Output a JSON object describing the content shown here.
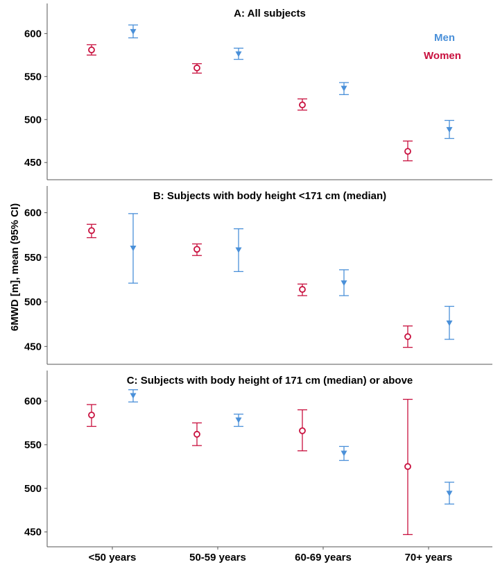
{
  "chart_data": {
    "type": "errorbar",
    "ylabel": "6MWD [m], mean (95% CI)",
    "categories": [
      "<50 years",
      "50-59 years",
      "60-69 years",
      "70+ years"
    ],
    "yticks": [
      450,
      500,
      550,
      600
    ],
    "legend": {
      "placement": "top-right",
      "entries": [
        {
          "name": "Men",
          "color": "#4a90d9"
        },
        {
          "name": "Women",
          "color": "#c8103e"
        }
      ]
    },
    "colors": {
      "women": "#c8103e",
      "men": "#4a90d9"
    },
    "markers": {
      "women": "open-circle",
      "men": "filled-triangle-down"
    },
    "panels": [
      {
        "title": "A: All subjects",
        "ylim": [
          430,
          635
        ],
        "series": [
          {
            "name": "Women",
            "values": [
              {
                "mean": 581,
                "lo": 575,
                "hi": 587
              },
              {
                "mean": 560,
                "lo": 554,
                "hi": 565
              },
              {
                "mean": 517,
                "lo": 511,
                "hi": 524
              },
              {
                "mean": 463,
                "lo": 452,
                "hi": 475
              }
            ]
          },
          {
            "name": "Men",
            "values": [
              {
                "mean": 602,
                "lo": 595,
                "hi": 610
              },
              {
                "mean": 576,
                "lo": 570,
                "hi": 583
              },
              {
                "mean": 536,
                "lo": 529,
                "hi": 543
              },
              {
                "mean": 488,
                "lo": 478,
                "hi": 499
              }
            ]
          }
        ]
      },
      {
        "title": "B: Subjects with body height <171 cm (median)",
        "ylim": [
          430,
          630
        ],
        "series": [
          {
            "name": "Women",
            "values": [
              {
                "mean": 580,
                "lo": 572,
                "hi": 587
              },
              {
                "mean": 559,
                "lo": 552,
                "hi": 565
              },
              {
                "mean": 514,
                "lo": 507,
                "hi": 520
              },
              {
                "mean": 461,
                "lo": 449,
                "hi": 473
              }
            ]
          },
          {
            "name": "Men",
            "values": [
              {
                "mean": 560,
                "lo": 521,
                "hi": 599
              },
              {
                "mean": 558,
                "lo": 534,
                "hi": 582
              },
              {
                "mean": 521,
                "lo": 507,
                "hi": 536
              },
              {
                "mean": 476,
                "lo": 458,
                "hi": 495
              }
            ]
          }
        ]
      },
      {
        "title": "C: Subjects with body height of 171 cm (median) or above",
        "ylim": [
          433,
          635
        ],
        "series": [
          {
            "name": "Women",
            "values": [
              {
                "mean": 584,
                "lo": 571,
                "hi": 596
              },
              {
                "mean": 562,
                "lo": 549,
                "hi": 575
              },
              {
                "mean": 566,
                "lo": 543,
                "hi": 590
              },
              {
                "mean": 525,
                "lo": 447,
                "hi": 602
              }
            ]
          },
          {
            "name": "Men",
            "values": [
              {
                "mean": 606,
                "lo": 599,
                "hi": 613
              },
              {
                "mean": 578,
                "lo": 571,
                "hi": 585
              },
              {
                "mean": 540,
                "lo": 532,
                "hi": 548
              },
              {
                "mean": 494,
                "lo": 482,
                "hi": 507
              }
            ]
          }
        ]
      }
    ]
  }
}
